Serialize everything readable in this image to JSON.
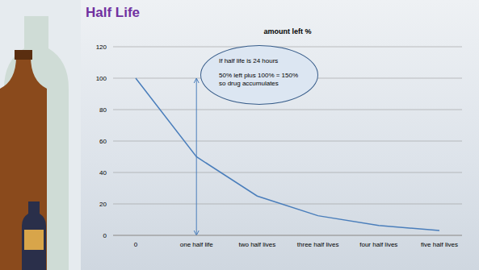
{
  "slide_title": "Half Life",
  "chart_data": {
    "type": "line",
    "title": "amount left %",
    "categories": [
      "0",
      "one half life",
      "two half lives",
      "three half lives",
      "four half lives",
      "five half lives"
    ],
    "values": [
      100,
      50,
      25,
      12.5,
      6.25,
      3.125
    ],
    "color": "#4a7ebb",
    "ylim": [
      0,
      120
    ],
    "yticks": [
      0,
      20,
      40,
      60,
      80,
      100,
      120
    ],
    "grid": true,
    "annotations": [
      {
        "lines": [
          "If half life is 24 hours",
          "50% left plus 100% = 150%",
          "so drug accumulates"
        ],
        "arrow": {
          "category": "one half life",
          "y_from": 100,
          "y_to": 0
        }
      }
    ]
  }
}
